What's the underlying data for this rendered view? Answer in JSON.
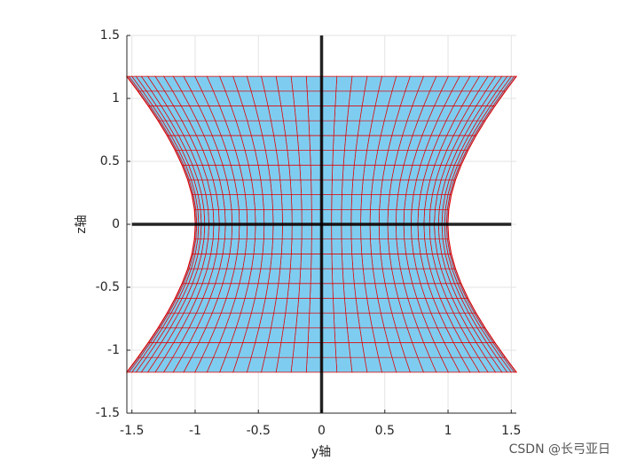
{
  "chart_data": {
    "type": "hyperboloid",
    "xlabel": "y轴",
    "ylabel": "z轴",
    "xlim": [
      -1.54,
      1.54
    ],
    "ylim": [
      -1.5,
      1.5
    ],
    "xticks": [
      -1.5,
      -1,
      -0.5,
      0,
      0.5,
      1,
      1.5
    ],
    "yticks": [
      -1.5,
      -1,
      -0.5,
      0,
      0.5,
      1,
      1.5
    ],
    "grid": true,
    "surface": {
      "waist_radius": 1,
      "face_color": "#7ecdf0",
      "edge_color": "#e00000",
      "z": [
        -1.175,
        -1.0575,
        -0.94,
        -0.8225,
        -0.705,
        -0.5875,
        -0.47,
        -0.3525,
        -0.235,
        -0.1175,
        0,
        0.1175,
        0.235,
        0.3525,
        0.47,
        0.5875,
        0.705,
        0.8225,
        0.94,
        1.0575,
        1.175
      ],
      "theta_deg": [
        0,
        4.5,
        9,
        13.5,
        18,
        22.5,
        27,
        31.5,
        36,
        40.5,
        45,
        49.5,
        54,
        58.5,
        63,
        67.5,
        72,
        76.5,
        81,
        85.5,
        90,
        94.5,
        99,
        103.5,
        108,
        112.5,
        117,
        121.5,
        126,
        130.5,
        135,
        139.5,
        144,
        148.5,
        153,
        157.5,
        162,
        166.5,
        171,
        175.5,
        180
      ]
    },
    "lines": [
      {
        "color": "#000000",
        "x": [
          0,
          0
        ],
        "y": [
          -1.5,
          1.5
        ]
      },
      {
        "color": "#000000",
        "x": [
          -1.5,
          1.5
        ],
        "y": [
          0,
          0
        ]
      }
    ],
    "watermark": "CSDN @长弓亚日"
  }
}
